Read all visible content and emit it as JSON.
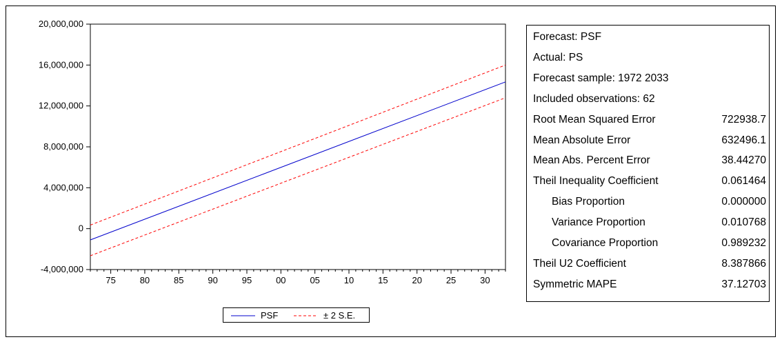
{
  "chart_data": {
    "type": "line",
    "x": [
      1972,
      2033
    ],
    "xlim": [
      1972,
      2033
    ],
    "ylim": [
      -4000000,
      20000000
    ],
    "x_ticks": [
      {
        "year": 1975,
        "label": "75"
      },
      {
        "year": 1980,
        "label": "80"
      },
      {
        "year": 1985,
        "label": "85"
      },
      {
        "year": 1990,
        "label": "90"
      },
      {
        "year": 1995,
        "label": "95"
      },
      {
        "year": 2000,
        "label": "00"
      },
      {
        "year": 2005,
        "label": "05"
      },
      {
        "year": 2010,
        "label": "10"
      },
      {
        "year": 2015,
        "label": "15"
      },
      {
        "year": 2020,
        "label": "20"
      },
      {
        "year": 2025,
        "label": "25"
      },
      {
        "year": 2030,
        "label": "30"
      }
    ],
    "y_ticks": [
      {
        "value": 20000000,
        "label": "20,000,000"
      },
      {
        "value": 16000000,
        "label": "16,000,000"
      },
      {
        "value": 12000000,
        "label": "12,000,000"
      },
      {
        "value": 8000000,
        "label": "8,000,000"
      },
      {
        "value": 4000000,
        "label": "4,000,000"
      },
      {
        "value": 0,
        "label": "0"
      },
      {
        "value": -4000000,
        "label": "-4,000,000"
      }
    ],
    "series": [
      {
        "name": "PSF",
        "style": "solid",
        "color": "#0000cc",
        "values": [
          -1100000,
          14350000
        ]
      },
      {
        "name": "± 2 S.E.",
        "style": "dashed",
        "color": "#ff0000",
        "values": [
          350000,
          16000000
        ]
      },
      {
        "name": "± 2 S.E.",
        "style": "dashed",
        "color": "#ff0000",
        "values": [
          -2650000,
          12800000
        ]
      }
    ],
    "legend": {
      "placement": "bottom-center",
      "items": [
        {
          "label": "PSF",
          "color": "#0000cc",
          "style": "solid"
        },
        {
          "label": "± 2 S.E.",
          "color": "#ff0000",
          "style": "dashed"
        }
      ]
    },
    "grid": false
  },
  "stats": [
    {
      "label": "Forecast: PSF",
      "value": "",
      "indent": false
    },
    {
      "label": "Actual: PS",
      "value": "",
      "indent": false
    },
    {
      "label": "Forecast sample: 1972 2033",
      "value": "",
      "indent": false
    },
    {
      "label": "Included observations: 62",
      "value": "",
      "indent": false
    },
    {
      "label": "Root Mean Squared Error",
      "value": "722938.7",
      "indent": false
    },
    {
      "label": "Mean Absolute Error",
      "value": "632496.1",
      "indent": false
    },
    {
      "label": "Mean Abs. Percent Error",
      "value": "38.44270",
      "indent": false
    },
    {
      "label": "Theil Inequality Coefficient",
      "value": "0.061464",
      "indent": false
    },
    {
      "label": "Bias Proportion",
      "value": "0.000000",
      "indent": true
    },
    {
      "label": "Variance Proportion",
      "value": "0.010768",
      "indent": true
    },
    {
      "label": "Covariance Proportion",
      "value": "0.989232",
      "indent": true
    },
    {
      "label": "Theil U2 Coefficient",
      "value": "8.387866",
      "indent": false
    },
    {
      "label": "Symmetric MAPE",
      "value": "37.12703",
      "indent": false
    }
  ],
  "legend": {
    "psf_label": "PSF",
    "se_label": "± 2 S.E."
  }
}
